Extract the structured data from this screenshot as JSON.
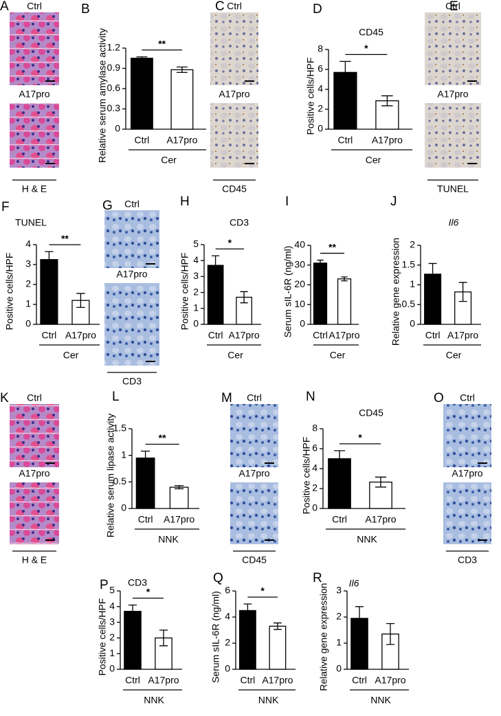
{
  "image_panels": [
    {
      "letter": "A",
      "labels": [
        "Ctrl",
        "A17pro"
      ],
      "caption": "H & E"
    },
    {
      "letter": "C",
      "labels": [
        "Ctrl",
        "A17pro"
      ],
      "caption": "CD45"
    },
    {
      "letter": "E",
      "labels": [
        "Ctrl",
        "A17pro"
      ],
      "caption": "TUNEL"
    },
    {
      "letter": "G",
      "labels": [
        "Ctrl",
        "A17pro"
      ],
      "caption": "CD3"
    },
    {
      "letter": "K",
      "labels": [
        "Ctrl",
        "A17pro"
      ],
      "caption": "H & E"
    },
    {
      "letter": "M",
      "labels": [
        "Ctrl",
        "A17pro"
      ],
      "caption": "CD45"
    },
    {
      "letter": "O",
      "labels": [
        "Ctrl",
        "A17pro"
      ],
      "caption": "CD3"
    }
  ],
  "chart_data": [
    {
      "type": "bar",
      "letter": "B",
      "ylabel": "Relative serum amylase activity",
      "categories": [
        "Ctrl",
        "A17pro"
      ],
      "values": [
        1.05,
        0.88
      ],
      "errors": [
        0.02,
        0.04
      ],
      "colors": [
        "#000000",
        "#ffffff"
      ],
      "ylim": [
        0,
        1.2
      ],
      "yticks": [
        0,
        0.3,
        0.6,
        0.9,
        1.2
      ],
      "significance": "**",
      "group_label": "Cer"
    },
    {
      "type": "bar",
      "letter": "D",
      "title": "CD45",
      "ylabel": "Positive cells/HPF",
      "categories": [
        "Ctrl",
        "A17pro"
      ],
      "values": [
        5.7,
        2.85
      ],
      "errors": [
        1.1,
        0.5
      ],
      "colors": [
        "#000000",
        "#ffffff"
      ],
      "ylim": [
        0,
        8
      ],
      "yticks": [
        0,
        2,
        4,
        6,
        8
      ],
      "significance": "*",
      "group_label": "Cer"
    },
    {
      "type": "bar",
      "letter": "F",
      "title": "TUNEL",
      "ylabel": "Positive cells/HPF",
      "categories": [
        "Ctrl",
        "A17pro"
      ],
      "values": [
        3.25,
        1.2
      ],
      "errors": [
        0.4,
        0.35
      ],
      "colors": [
        "#000000",
        "#ffffff"
      ],
      "ylim": [
        0,
        4
      ],
      "yticks": [
        0,
        1,
        2,
        3,
        4
      ],
      "significance": "**",
      "group_label": "Cer"
    },
    {
      "type": "bar",
      "letter": "H",
      "title": "CD3",
      "ylabel": "Positive cells/HPF",
      "categories": [
        "Ctrl",
        "A17pro"
      ],
      "values": [
        3.7,
        1.7
      ],
      "errors": [
        0.6,
        0.35
      ],
      "colors": [
        "#000000",
        "#ffffff"
      ],
      "ylim": [
        0,
        5
      ],
      "yticks": [
        0,
        1,
        2,
        3,
        4,
        5
      ],
      "significance": "*",
      "group_label": "Cer"
    },
    {
      "type": "bar",
      "letter": "I",
      "ylabel": "Serum sIL-6R (ng/ml)",
      "categories": [
        "Ctrl",
        "A17pro"
      ],
      "values": [
        31,
        23
      ],
      "errors": [
        1.5,
        1
      ],
      "colors": [
        "#000000",
        "#ffffff"
      ],
      "ylim": [
        0,
        40
      ],
      "yticks": [
        0,
        10,
        20,
        30,
        40
      ],
      "significance": "**",
      "group_label": "Cer"
    },
    {
      "type": "bar",
      "letter": "J",
      "title": "Il6",
      "title_italic": true,
      "ylabel": "Relative gene expression",
      "categories": [
        "Ctrl",
        "A17pro"
      ],
      "values": [
        1.27,
        0.82
      ],
      "errors": [
        0.27,
        0.24
      ],
      "colors": [
        "#000000",
        "#ffffff"
      ],
      "ylim": [
        0,
        2
      ],
      "yticks": [
        0,
        0.5,
        1,
        1.5,
        2
      ],
      "group_label": "Cer"
    },
    {
      "type": "bar",
      "letter": "L",
      "ylabel": "Relative serum lipase activity",
      "categories": [
        "Ctrl",
        "A17pro"
      ],
      "values": [
        0.95,
        0.4
      ],
      "errors": [
        0.13,
        0.03
      ],
      "colors": [
        "#000000",
        "#ffffff"
      ],
      "ylim": [
        0,
        1.5
      ],
      "yticks": [
        0,
        0.5,
        1,
        1.5
      ],
      "significance": "**",
      "group_label": "NNK"
    },
    {
      "type": "bar",
      "letter": "N",
      "title": "CD45",
      "ylabel": "Positive cells/HPF",
      "categories": [
        "Ctrl",
        "A17pro"
      ],
      "values": [
        5.0,
        2.65
      ],
      "errors": [
        0.8,
        0.5
      ],
      "colors": [
        "#000000",
        "#ffffff"
      ],
      "ylim": [
        0,
        8
      ],
      "yticks": [
        0,
        2,
        4,
        6,
        8
      ],
      "significance": "*",
      "group_label": "NNK"
    },
    {
      "type": "bar",
      "letter": "P",
      "title": "CD3",
      "ylabel": "Positive cells/HPF",
      "categories": [
        "Ctrl",
        "A17pro"
      ],
      "values": [
        3.7,
        2.0
      ],
      "errors": [
        0.4,
        0.5
      ],
      "colors": [
        "#000000",
        "#ffffff"
      ],
      "ylim": [
        0,
        5
      ],
      "yticks": [
        0,
        1,
        2,
        3,
        4,
        5
      ],
      "significance": "*",
      "group_label": "NNK"
    },
    {
      "type": "bar",
      "letter": "Q",
      "ylabel": "Serum sIL-6R (ng/ml)",
      "categories": [
        "Ctrl",
        "A17pro"
      ],
      "values": [
        4.5,
        3.3
      ],
      "errors": [
        0.5,
        0.25
      ],
      "colors": [
        "#000000",
        "#ffffff"
      ],
      "ylim": [
        0,
        6
      ],
      "yticks": [
        0,
        2,
        4,
        6
      ],
      "significance": "*",
      "group_label": "NNK"
    },
    {
      "type": "bar",
      "letter": "R",
      "title": "Il6",
      "title_italic": true,
      "ylabel": "Relative gene expression",
      "categories": [
        "Ctrl",
        "A17pro"
      ],
      "values": [
        1.95,
        1.35
      ],
      "errors": [
        0.45,
        0.4
      ],
      "colors": [
        "#000000",
        "#ffffff"
      ],
      "ylim": [
        0,
        3
      ],
      "yticks": [
        0,
        1,
        2,
        3
      ],
      "group_label": "NNK"
    }
  ]
}
